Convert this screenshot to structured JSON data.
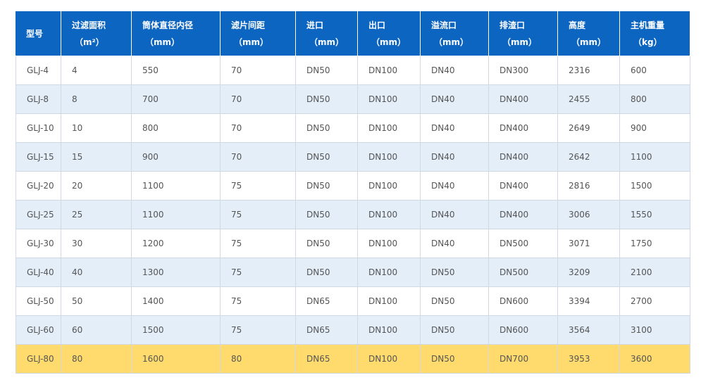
{
  "table": {
    "header": [
      [
        "型号"
      ],
      [
        "过滤面积",
        "（m²）"
      ],
      [
        "筒体直径内径",
        "（mm）"
      ],
      [
        "滤片间距",
        "（mm）"
      ],
      [
        "进口",
        "（mm）"
      ],
      [
        "出口",
        "（mm）"
      ],
      [
        "溢流口",
        "（mm）"
      ],
      [
        "排渣口",
        "（mm）"
      ],
      [
        "高度",
        "（mm）"
      ],
      [
        "主机重量",
        "（kg）"
      ]
    ],
    "rows": [
      [
        "GLJ-4",
        4,
        550,
        70,
        "DN50",
        "DN100",
        "DN40",
        "DN300",
        2316,
        600
      ],
      [
        "GLJ-8",
        8,
        700,
        70,
        "DN50",
        "DN100",
        "DN40",
        "DN400",
        2455,
        800
      ],
      [
        "GLJ-10",
        10,
        800,
        70,
        "DN50",
        "DN100",
        "DN40",
        "DN400",
        2649,
        900
      ],
      [
        "GLJ-15",
        15,
        900,
        70,
        "DN50",
        "DN100",
        "DN40",
        "DN400",
        2642,
        1100
      ],
      [
        "GLJ-20",
        20,
        1100,
        75,
        "DN50",
        "DN100",
        "DN40",
        "DN400",
        2816,
        1500
      ],
      [
        "GLJ-25",
        25,
        1100,
        75,
        "DN50",
        "DN100",
        "DN40",
        "DN400",
        3006,
        1550
      ],
      [
        "GLJ-30",
        30,
        1200,
        75,
        "DN50",
        "DN100",
        "DN40",
        "DN500",
        3071,
        1750
      ],
      [
        "GLJ-40",
        40,
        1300,
        75,
        "DN50",
        "DN100",
        "DN50",
        "DN500",
        3209,
        2100
      ],
      [
        "GLJ-50",
        50,
        1400,
        75,
        "DN65",
        "DN100",
        "DN50",
        "DN600",
        3394,
        2700
      ],
      [
        "GLJ-60",
        60,
        1500,
        75,
        "DN65",
        "DN100",
        "DN50",
        "DN600",
        3564,
        3100
      ],
      [
        "GLJ-80",
        80,
        1600,
        80,
        "DN65",
        "DN100",
        "DN50",
        "DN700",
        3953,
        3600
      ]
    ]
  }
}
